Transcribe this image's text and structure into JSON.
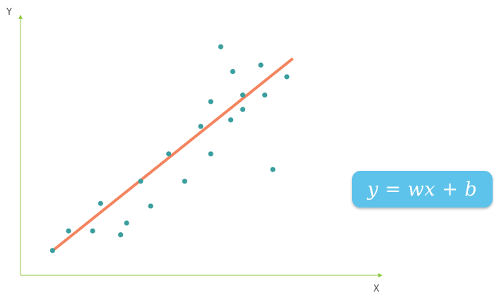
{
  "chart_data": {
    "type": "scatter",
    "xlabel": "X",
    "ylabel": "Y",
    "grid": false,
    "axis_ticks": false,
    "colors": {
      "axis": "#8cc63f",
      "points": "#3a9e9e",
      "fit_line": "#f4845f",
      "formula_box": "#5ec3ea"
    },
    "points": [
      {
        "x": 0.8,
        "y": 0.95
      },
      {
        "x": 1.2,
        "y": 1.7
      },
      {
        "x": 1.8,
        "y": 1.7
      },
      {
        "x": 2.0,
        "y": 2.75
      },
      {
        "x": 2.5,
        "y": 1.55
      },
      {
        "x": 2.65,
        "y": 2.0
      },
      {
        "x": 3.0,
        "y": 3.6
      },
      {
        "x": 3.25,
        "y": 2.65
      },
      {
        "x": 3.7,
        "y": 4.65
      },
      {
        "x": 4.1,
        "y": 3.6
      },
      {
        "x": 4.5,
        "y": 5.7
      },
      {
        "x": 4.75,
        "y": 4.65
      },
      {
        "x": 4.75,
        "y": 6.65
      },
      {
        "x": 5.0,
        "y": 8.75
      },
      {
        "x": 5.25,
        "y": 5.95
      },
      {
        "x": 5.3,
        "y": 7.8
      },
      {
        "x": 5.55,
        "y": 6.9
      },
      {
        "x": 5.55,
        "y": 6.35
      },
      {
        "x": 6.0,
        "y": 8.05
      },
      {
        "x": 6.1,
        "y": 6.9
      },
      {
        "x": 6.3,
        "y": 4.05
      },
      {
        "x": 6.65,
        "y": 7.6
      }
    ],
    "fit_line": {
      "x": [
        0.85,
        6.8
      ],
      "y": [
        1.0,
        8.3
      ]
    },
    "xlim": [
      0,
      9
    ],
    "ylim": [
      0,
      10
    ]
  },
  "formula": "y = wx + b"
}
